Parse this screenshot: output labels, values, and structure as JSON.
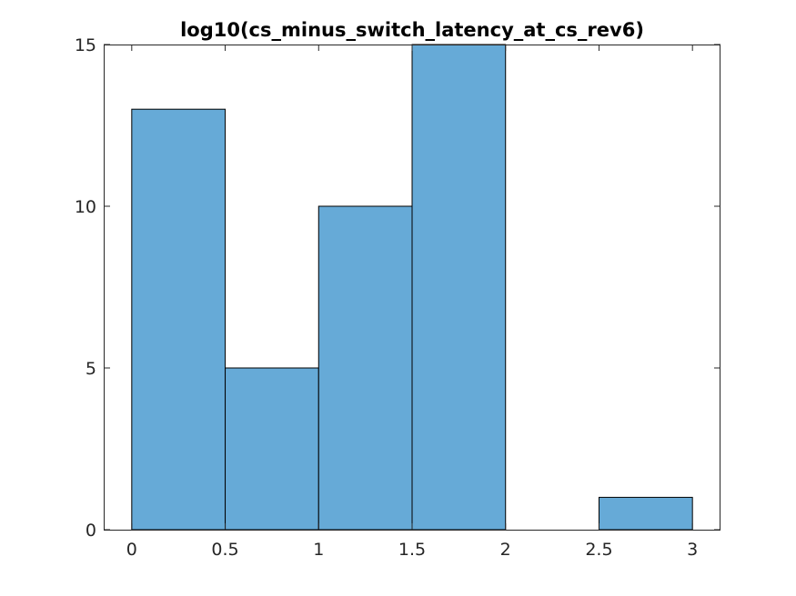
{
  "chart_data": {
    "type": "bar",
    "title": "log10(cs_minus_switch_latency_at_cs_rev6)",
    "xlabel": "",
    "ylabel": "",
    "bin_edges": [
      0,
      0.5,
      1,
      1.5,
      2,
      2.5,
      3
    ],
    "values": [
      13,
      5,
      10,
      15,
      0,
      1
    ],
    "xlim": [
      -0.15,
      3.15
    ],
    "ylim": [
      0,
      15
    ],
    "xticks": [
      0,
      0.5,
      1,
      1.5,
      2,
      2.5,
      3
    ],
    "xtick_labels": [
      "0",
      "0.5",
      "1",
      "1.5",
      "2",
      "2.5",
      "3"
    ],
    "yticks": [
      0,
      5,
      10,
      15
    ],
    "ytick_labels": [
      "0",
      "5",
      "10",
      "15"
    ],
    "grid": false,
    "legend": "none",
    "bar_color": "#66aad7",
    "edge_color": "#000000"
  }
}
